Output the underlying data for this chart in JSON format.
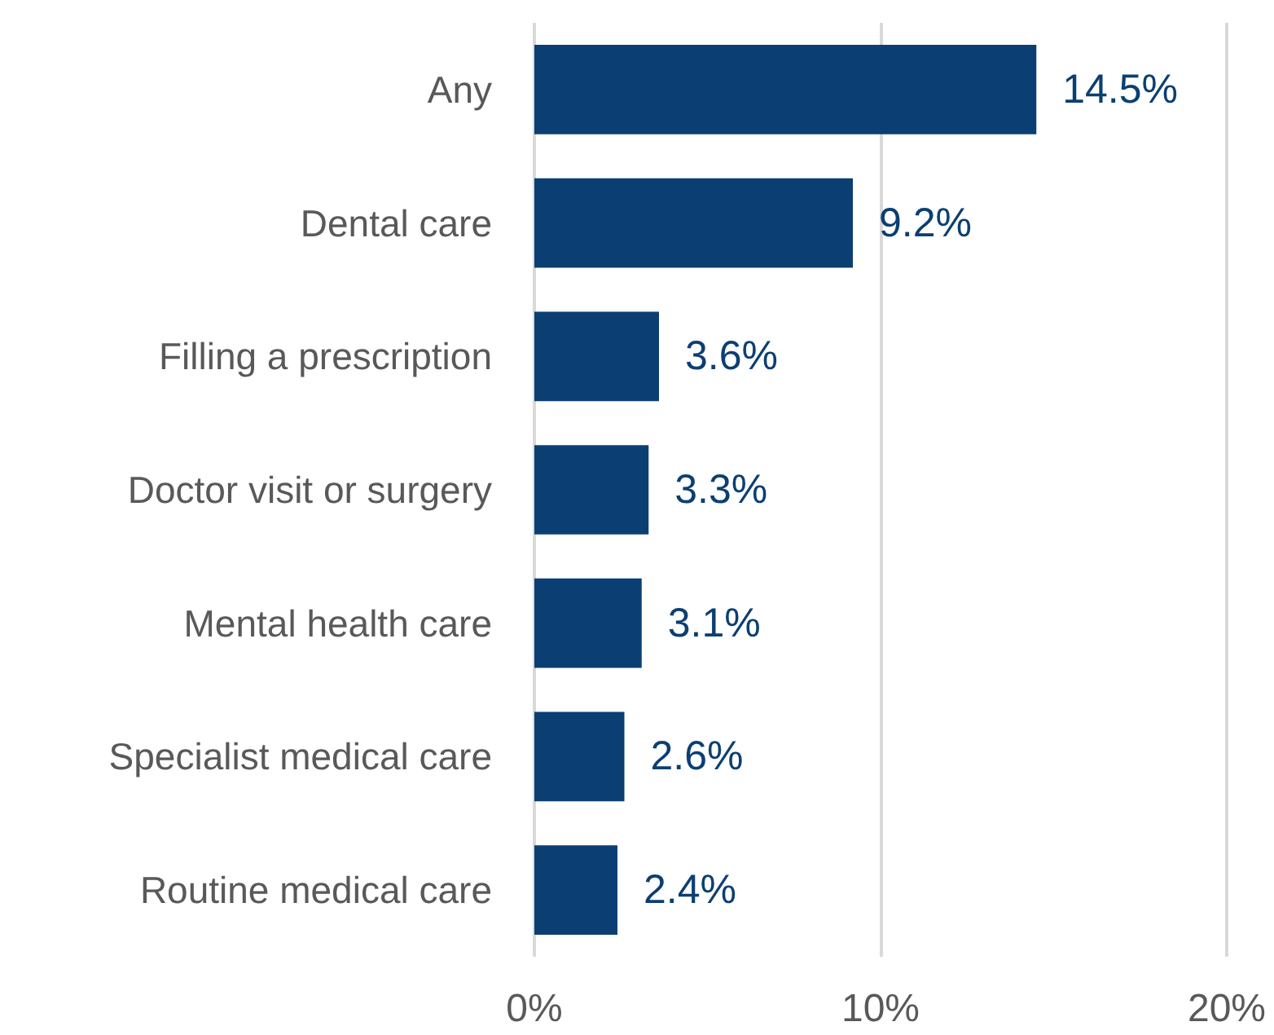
{
  "chart_data": {
    "type": "bar",
    "orientation": "horizontal",
    "categories": [
      "Any",
      "Dental care",
      "Filling a prescription",
      "Doctor visit or surgery",
      "Mental health care",
      "Specialist medical care",
      "Routine medical care"
    ],
    "values": [
      14.5,
      9.2,
      3.6,
      3.3,
      3.1,
      2.6,
      2.4
    ],
    "value_labels": [
      "14.5%",
      "9.2%",
      "3.6%",
      "3.3%",
      "3.1%",
      "2.6%",
      "2.4%"
    ],
    "color": "#0b3f73",
    "xlim": [
      0,
      20
    ],
    "xticks": [
      {
        "value": 0,
        "label": "0%"
      },
      {
        "value": 10,
        "label": "10%"
      },
      {
        "value": 20,
        "label": "20%"
      }
    ],
    "grid": "x"
  }
}
